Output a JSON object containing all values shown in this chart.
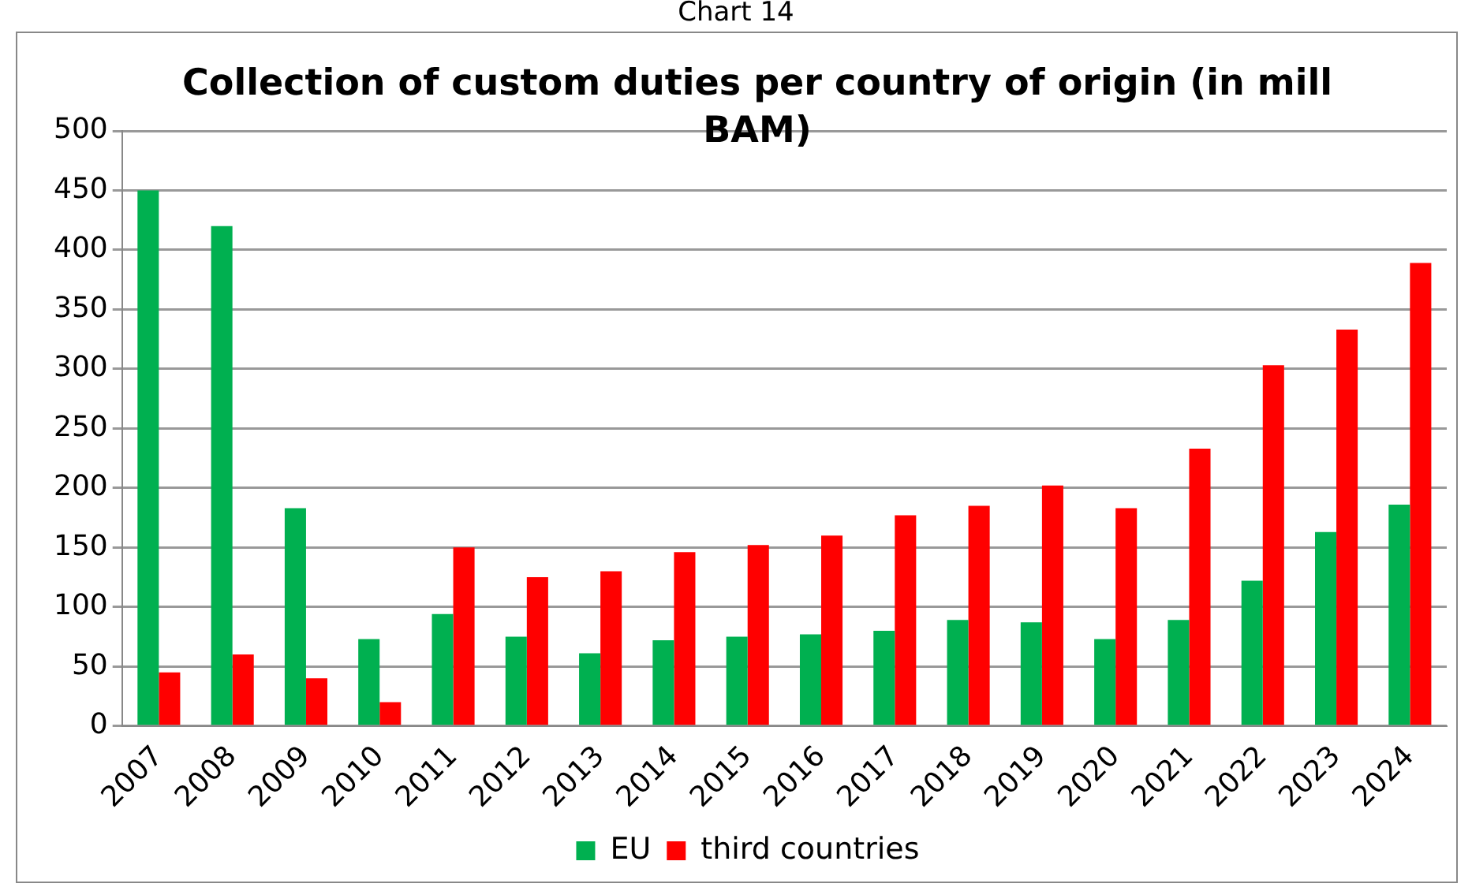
{
  "chart_data": {
    "type": "bar",
    "title": "Collection of custom duties per country of origin (in mill BAM)",
    "annotations": [
      "Chart 14"
    ],
    "categories": [
      "2007",
      "2008",
      "2009",
      "2010",
      "2011",
      "2012",
      "2013",
      "2014",
      "2015",
      "2016",
      "2017",
      "2018",
      "2019",
      "2020",
      "2021",
      "2022",
      "2023",
      "2024"
    ],
    "series": [
      {
        "name": "EU",
        "color": "#00b050",
        "values": [
          450,
          420,
          183,
          73,
          94,
          75,
          61,
          72,
          75,
          77,
          80,
          89,
          87,
          73,
          89,
          122,
          163,
          186
        ]
      },
      {
        "name": "third countries",
        "color": "#ff0000",
        "values": [
          45,
          60,
          40,
          20,
          150,
          125,
          130,
          146,
          152,
          160,
          177,
          185,
          202,
          183,
          233,
          303,
          333,
          389
        ]
      }
    ],
    "ylim": [
      0,
      500
    ],
    "yticks": [
      0,
      50,
      100,
      150,
      200,
      250,
      300,
      350,
      400,
      450,
      500
    ],
    "grid": "y",
    "legend": "bottom"
  }
}
